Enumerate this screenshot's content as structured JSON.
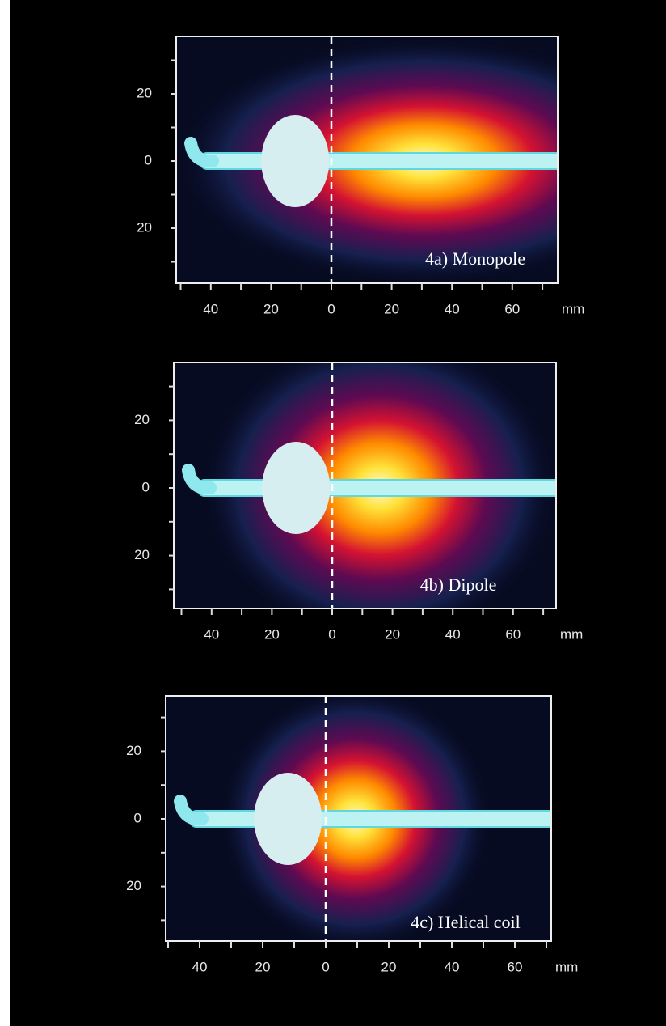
{
  "panels": [
    {
      "label": "4a) Monopole",
      "x_tick_labels": [
        "40",
        "20",
        "0",
        "20",
        "40",
        "60"
      ],
      "x_unit": "mm",
      "y_tick_labels": [
        "20",
        "0",
        "20"
      ]
    },
    {
      "label": "4b) Dipole",
      "x_tick_labels": [
        "40",
        "20",
        "0",
        "20",
        "40",
        "60"
      ],
      "x_unit": "mm",
      "y_tick_labels": [
        "20",
        "0",
        "20"
      ]
    },
    {
      "label": "4c) Helical coil",
      "x_tick_labels": [
        "40",
        "20",
        "0",
        "20",
        "40",
        "60"
      ],
      "x_unit": "mm",
      "y_tick_labels": [
        "20",
        "0",
        "20"
      ]
    }
  ]
}
